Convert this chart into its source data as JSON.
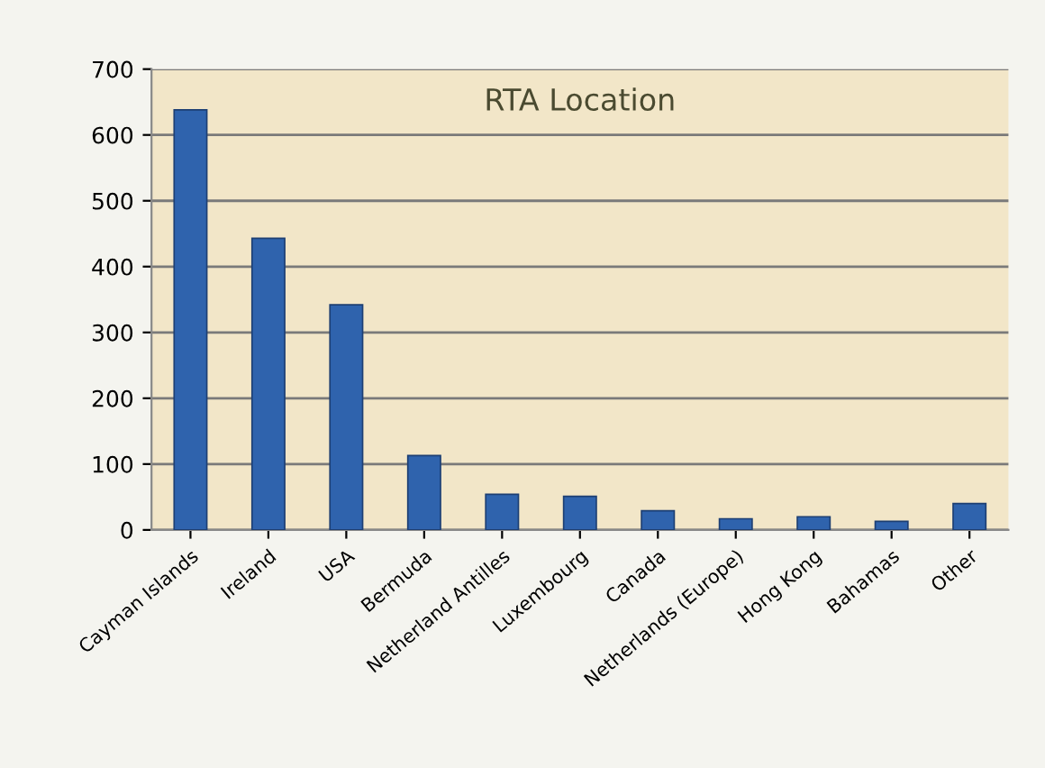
{
  "chart_data": {
    "type": "bar",
    "title": "RTA Location",
    "categories": [
      "Cayman Islands",
      "Ireland",
      "USA",
      "Bermuda",
      "Netherland Antilles",
      "Luxembourg",
      "Canada",
      "Netherlands (Europe)",
      "Hong Kong",
      "Bahamas",
      "Other"
    ],
    "values": [
      638,
      443,
      342,
      113,
      54,
      51,
      29,
      17,
      20,
      13,
      40
    ],
    "color": "#2f63ad",
    "ylim": [
      0,
      700
    ],
    "yticks": [
      0,
      100,
      200,
      300,
      400,
      500,
      600,
      700
    ],
    "grid": "y"
  }
}
